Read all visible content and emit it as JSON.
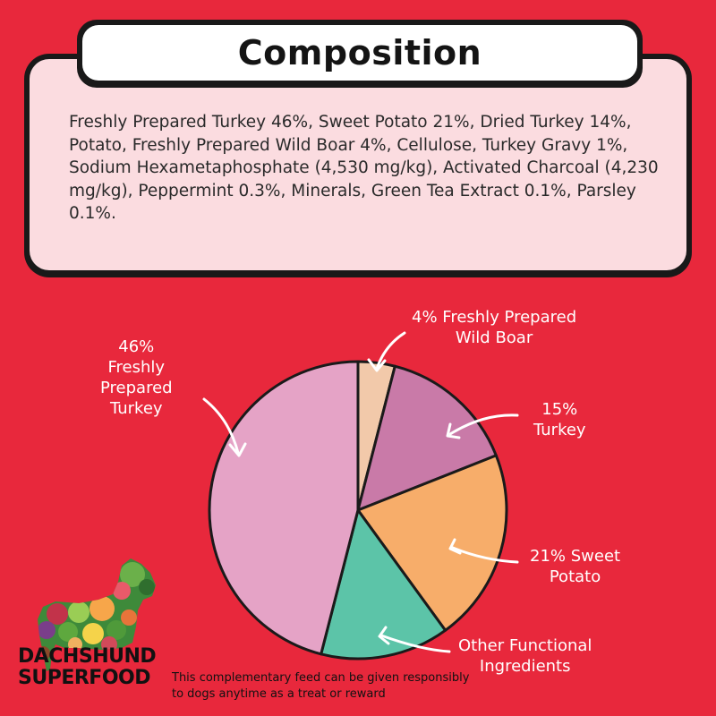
{
  "composition": {
    "title": "Composition",
    "text": "Freshly Prepared Turkey 46%, Sweet Potato 21%, Dried Turkey 14%, Potato, Freshly Prepared Wild Boar 4%, Cellulose, Turkey Gravy 1%, Sodium Hexametaphosphate (4,530 mg/kg), Activated Charcoal (4,230 mg/kg), Peppermint 0.3%, Minerals, Green Tea Extract 0.1%, Parsley 0.1%."
  },
  "chart_data": {
    "type": "pie",
    "title": "",
    "slices": [
      {
        "label": "4% Freshly Prepared Wild Boar",
        "value": 4,
        "color": "#F2C9AA"
      },
      {
        "label": "15% Turkey",
        "value": 15,
        "color": "#C97AA8"
      },
      {
        "label": "21% Sweet Potato",
        "value": 21,
        "color": "#F7AD6A"
      },
      {
        "label": "Other Functional Ingredients",
        "value": 14,
        "color": "#5CC4A8"
      },
      {
        "label": "46% Freshly Prepared Turkey",
        "value": 46,
        "color": "#E5A3C6"
      }
    ]
  },
  "labels": {
    "wild_boar_line1": "4% Freshly Prepared",
    "wild_boar_line2": "Wild Boar",
    "turkey15_line1": "15%",
    "turkey15_line2": "Turkey",
    "sweet_line1": "21% Sweet",
    "sweet_line2": "Potato",
    "other_line1": "Other Functional",
    "other_line2": "Ingredients",
    "fresh_line1": "46%",
    "fresh_line2": "Freshly",
    "fresh_line3": "Prepared",
    "fresh_line4": "Turkey"
  },
  "brand": {
    "line1": "DACHSHUND",
    "line2": "SUPERFOOD",
    "logo_icon": "dachshund-collage-icon"
  },
  "disclaimer": {
    "line1": "This complementary feed can be given responsibly",
    "line2": "to dogs anytime as a treat or reward"
  }
}
